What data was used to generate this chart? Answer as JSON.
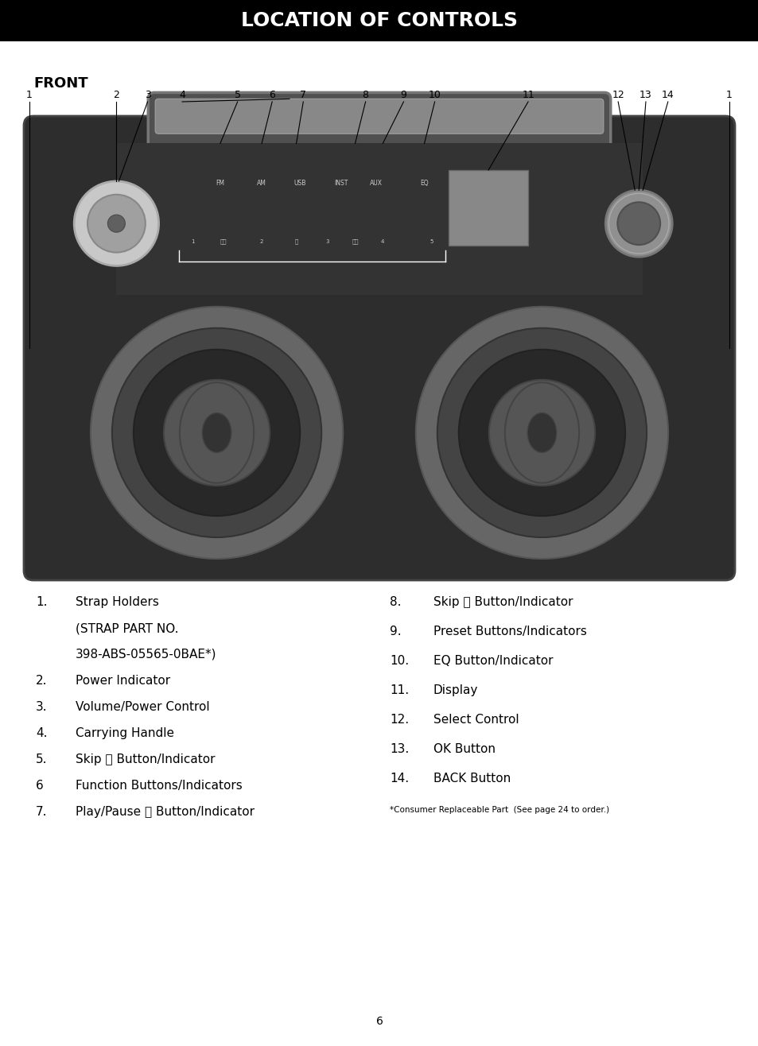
{
  "title": "LOCATION OF CONTROLS",
  "title_bg": "#000000",
  "title_color": "#ffffff",
  "title_fontsize": 18,
  "front_label": "FRONT",
  "page_number": "6",
  "boombox_body_color": "#2d2d2d",
  "handle_color": "#404040",
  "handle_bar_color": "#606060",
  "control_strip_color": "#383838",
  "display_color": "#888888",
  "knob_left_outer": "#d0d0d0",
  "knob_left_inner": "#aaaaaa",
  "knob_right_outer": "#909090",
  "knob_right_inner": "#606060",
  "speaker_ring1": "#666666",
  "speaker_ring2": "#444444",
  "speaker_ring3": "#222222",
  "speaker_cone": "#555555",
  "footnote": "*Consumer Replaceable Part  (See page 24 to order.)",
  "left_rows": [
    [
      "1.",
      "Strap Holders"
    ],
    [
      "",
      "(STRAP PART NO."
    ],
    [
      "",
      "398-ABS-05565-0BAE*)"
    ],
    [
      "2.",
      "Power Indicator"
    ],
    [
      "3.",
      "Volume/Power Control"
    ],
    [
      "4.",
      "Carrying Handle"
    ],
    [
      "5.",
      "Skip ⏮ Button/Indicator"
    ],
    [
      "6",
      "Function Buttons/Indicators"
    ],
    [
      "7.",
      "Play/Pause ⏯ Button/Indicator"
    ]
  ],
  "right_rows": [
    [
      "8.",
      "Skip ⏭ Button/Indicator"
    ],
    [
      "9.",
      "Preset Buttons/Indicators"
    ],
    [
      "10.",
      "EQ Button/Indicator"
    ],
    [
      "11.",
      "Display"
    ],
    [
      "12.",
      "Select Control"
    ],
    [
      "13.",
      "OK Button"
    ],
    [
      "14.",
      "BACK Button"
    ]
  ]
}
